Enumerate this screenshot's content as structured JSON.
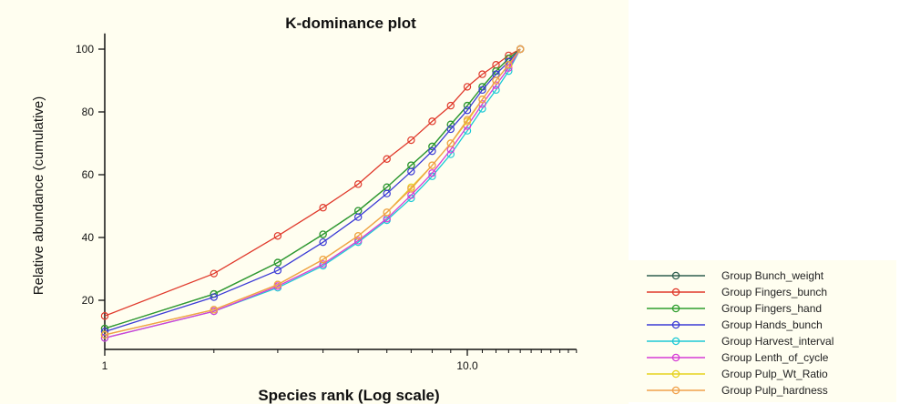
{
  "chart_data": {
    "type": "line",
    "title": "K-dominance plot",
    "xlabel": "Species rank (Log scale)",
    "ylabel": "Relative abundance (cumulative)",
    "x_scale": "log",
    "xlim": [
      1,
      20
    ],
    "ylim": [
      0,
      105
    ],
    "x_ticks": [
      1,
      10
    ],
    "x_tick_labels": [
      "1",
      "10.0"
    ],
    "y_ticks": [
      20,
      40,
      60,
      80,
      100
    ],
    "y_tick_labels": [
      "20",
      "40",
      "60",
      "80",
      "100"
    ],
    "grid": false,
    "legend_position": "bottom-right, outside plot",
    "x": [
      1,
      2,
      3,
      4,
      5,
      6,
      7,
      8,
      9,
      10,
      11,
      12,
      13,
      14
    ],
    "series": [
      {
        "name": "Group Bunch_weight",
        "color": "#2f5f4f",
        "values": [
          11,
          22,
          32,
          41,
          48.5,
          56,
          63,
          69,
          76,
          82,
          88,
          93,
          97,
          100
        ]
      },
      {
        "name": "Group Fingers_bunch",
        "color": "#e0392b",
        "values": [
          15,
          28.5,
          40.5,
          49.5,
          57,
          65,
          71,
          77,
          82,
          88,
          92,
          95,
          98,
          100
        ]
      },
      {
        "name": "Group Fingers_hand",
        "color": "#2e9e2e",
        "values": [
          11,
          22,
          32,
          41,
          48.5,
          56,
          63,
          69,
          76,
          82,
          88,
          93,
          97,
          100
        ]
      },
      {
        "name": "Group Hands_bunch",
        "color": "#3b3bd6",
        "values": [
          10,
          21,
          29.5,
          38.5,
          46.5,
          54,
          61,
          67.5,
          74.5,
          80.5,
          87,
          92,
          96,
          100
        ]
      },
      {
        "name": "Group Harvest_interval",
        "color": "#1ec9d6",
        "values": [
          8,
          16.5,
          24,
          31,
          38.5,
          45.5,
          52.5,
          59.5,
          66.5,
          74,
          81,
          87,
          93,
          100
        ]
      },
      {
        "name": "Group Lenth_of_cycle",
        "color": "#d63bd6",
        "values": [
          8,
          16.5,
          24.5,
          31.5,
          39,
          46,
          53.5,
          60.5,
          68,
          75.5,
          82.5,
          88.5,
          94,
          100
        ]
      },
      {
        "name": "Group Pulp_Wt_Ratio",
        "color": "#e6d21e",
        "values": [
          9,
          17,
          25,
          33,
          40.5,
          48,
          56,
          63,
          70,
          77,
          84,
          90,
          95,
          100
        ]
      },
      {
        "name": "Group Pulp_hardness",
        "color": "#f0a04a",
        "values": [
          9,
          17,
          25,
          33,
          40.5,
          48,
          55.5,
          63,
          70,
          77.5,
          84,
          90,
          95,
          100
        ]
      }
    ]
  }
}
